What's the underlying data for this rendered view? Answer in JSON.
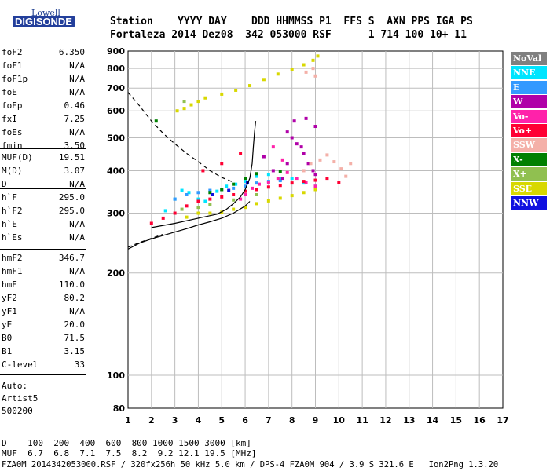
{
  "logo": {
    "line1": "Lowell",
    "line2": "DIGISONDE"
  },
  "header": {
    "labels": "Station    YYYY DAY    DDD HHMMSS P1  FFS S  AXN PPS IGA PS",
    "values": "Fortaleza 2014 Dez08  342 053000 RSF      1 714 100 10+ 11"
  },
  "params_group1": [
    {
      "label": "foF2",
      "value": "6.350"
    },
    {
      "label": "foF1",
      "value": "N/A"
    },
    {
      "label": "foF1p",
      "value": "N/A"
    },
    {
      "label": "foE",
      "value": "N/A"
    },
    {
      "label": "foEp",
      "value": "0.46"
    },
    {
      "label": "fxI",
      "value": "7.25"
    },
    {
      "label": "foEs",
      "value": "N/A"
    },
    {
      "label": "fmin",
      "value": "3.50"
    }
  ],
  "params_group2": [
    {
      "label": "MUF(D)",
      "value": "19.51"
    },
    {
      "label": "M(D)",
      "value": "3.07"
    },
    {
      "label": "D",
      "value": "N/A"
    }
  ],
  "params_group3": [
    {
      "label": "h`F",
      "value": "295.0"
    },
    {
      "label": "h`F2",
      "value": "295.0"
    },
    {
      "label": "h`E",
      "value": "N/A"
    },
    {
      "label": "h`Es",
      "value": "N/A"
    }
  ],
  "params_group4": [
    {
      "label": "hmF2",
      "value": "346.7"
    },
    {
      "label": "hmF1",
      "value": "N/A"
    },
    {
      "label": "hmE",
      "value": "110.0"
    },
    {
      "label": "yF2",
      "value": "80.2"
    },
    {
      "label": "yF1",
      "value": "N/A"
    },
    {
      "label": "yE",
      "value": "20.0"
    },
    {
      "label": "B0",
      "value": "71.5"
    },
    {
      "label": "B1",
      "value": "3.15"
    }
  ],
  "params_group5": [
    {
      "label": "C-level",
      "value": "33"
    }
  ],
  "auto": {
    "line1": "Auto:",
    "line2": "Artist5",
    "line3": "500200"
  },
  "legend": [
    {
      "label": "NoVal",
      "color": "#808080"
    },
    {
      "label": "NNE",
      "color": "#00e5ff"
    },
    {
      "label": "E",
      "color": "#3399ff"
    },
    {
      "label": "W",
      "color": "#b000a8"
    },
    {
      "label": "Vo-",
      "color": "#ff22aa"
    },
    {
      "label": "Vo+",
      "color": "#ff0033"
    },
    {
      "label": "SSW",
      "color": "#f4b0a8"
    },
    {
      "label": "X-",
      "color": "#008000"
    },
    {
      "label": "X+",
      "color": "#90c050"
    },
    {
      "label": "SSE",
      "color": "#d8d800"
    },
    {
      "label": "NNW",
      "color": "#1010e0"
    }
  ],
  "muf_table": {
    "d_row": "D    100  200  400  600  800 1000 1500 3000 [km]",
    "muf_row": "MUF  6.7  6.8  7.1  7.5  8.2  9.2 12.1 19.5 [MHz]"
  },
  "footer": "FZA0M_2014342053000.RSF / 320fx256h 50 kHz 5.0 km / DPS-4 FZA0M 904 / 3.9 S 321.6 E   Ion2Png 1.3.20",
  "chart_data": {
    "type": "scatter",
    "title": "",
    "xlabel": "",
    "ylabel": "",
    "xlim": [
      1,
      17
    ],
    "ylim": [
      80,
      900
    ],
    "y_scale": "log",
    "x_ticks": [
      1,
      2,
      3,
      4,
      5,
      6,
      7,
      8,
      9,
      10,
      11,
      12,
      13,
      14,
      15,
      16,
      17
    ],
    "y_ticks": [
      80,
      100,
      200,
      300,
      400,
      500,
      600,
      700,
      800,
      900
    ],
    "grid": true,
    "legend_position": "right",
    "series": [
      {
        "name": "SSE",
        "points": [
          [
            3.1,
            600
          ],
          [
            3.4,
            610
          ],
          [
            3.7,
            625
          ],
          [
            4.0,
            640
          ],
          [
            4.3,
            655
          ],
          [
            5.0,
            672
          ],
          [
            5.6,
            690
          ],
          [
            6.2,
            712
          ],
          [
            6.8,
            742
          ],
          [
            7.4,
            770
          ],
          [
            8.0,
            795
          ],
          [
            8.5,
            820
          ],
          [
            8.9,
            845
          ],
          [
            9.1,
            870
          ],
          [
            3.5,
            292
          ],
          [
            4.0,
            300
          ],
          [
            4.5,
            300
          ],
          [
            5.0,
            302
          ],
          [
            5.5,
            308
          ],
          [
            6.0,
            312
          ],
          [
            6.5,
            320
          ],
          [
            7.0,
            326
          ],
          [
            7.5,
            332
          ],
          [
            8.0,
            338
          ],
          [
            8.5,
            345
          ],
          [
            9.0,
            352
          ]
        ]
      },
      {
        "name": "NNE",
        "points": [
          [
            2.6,
            305
          ],
          [
            3.0,
            330
          ],
          [
            3.3,
            350
          ],
          [
            3.6,
            345
          ],
          [
            4.0,
            330
          ],
          [
            4.3,
            325
          ],
          [
            4.8,
            348
          ],
          [
            5.2,
            360
          ],
          [
            5.6,
            365
          ],
          [
            6.0,
            372
          ],
          [
            6.5,
            385
          ],
          [
            7.0,
            390
          ],
          [
            7.5,
            378
          ],
          [
            8.0,
            380
          ],
          [
            8.5,
            368
          ],
          [
            9.0,
            360
          ]
        ]
      },
      {
        "name": "E",
        "points": [
          [
            3.0,
            330
          ],
          [
            3.5,
            340
          ],
          [
            4.0,
            345
          ],
          [
            4.5,
            350
          ],
          [
            5.0,
            352
          ],
          [
            5.5,
            355
          ],
          [
            6.0,
            360
          ],
          [
            6.5,
            368
          ],
          [
            7.0,
            372
          ],
          [
            7.5,
            374
          ]
        ]
      },
      {
        "name": "W",
        "points": [
          [
            7.8,
            520
          ],
          [
            8.0,
            500
          ],
          [
            8.2,
            480
          ],
          [
            8.4,
            470
          ],
          [
            8.5,
            450
          ],
          [
            8.7,
            420
          ],
          [
            8.9,
            400
          ],
          [
            9.0,
            390
          ],
          [
            7.8,
            420
          ],
          [
            8.1,
            560
          ],
          [
            8.6,
            570
          ],
          [
            9.0,
            540
          ],
          [
            6.8,
            440
          ],
          [
            7.2,
            400
          ],
          [
            7.6,
            380
          ]
        ]
      },
      {
        "name": "Vo-",
        "points": [
          [
            5.8,
            330
          ],
          [
            6.0,
            340
          ],
          [
            6.3,
            355
          ],
          [
            6.6,
            365
          ],
          [
            7.0,
            370
          ],
          [
            7.4,
            380
          ],
          [
            7.8,
            395
          ],
          [
            8.2,
            380
          ],
          [
            8.6,
            370
          ],
          [
            9.0,
            360
          ],
          [
            7.2,
            470
          ],
          [
            7.6,
            430
          ]
        ]
      },
      {
        "name": "Vo+",
        "points": [
          [
            2.0,
            280
          ],
          [
            2.5,
            290
          ],
          [
            3.0,
            300
          ],
          [
            3.5,
            315
          ],
          [
            4.0,
            325
          ],
          [
            4.5,
            330
          ],
          [
            5.0,
            335
          ],
          [
            5.5,
            340
          ],
          [
            6.0,
            348
          ],
          [
            6.5,
            352
          ],
          [
            7.0,
            358
          ],
          [
            7.5,
            362
          ],
          [
            8.0,
            368
          ],
          [
            8.5,
            372
          ],
          [
            9.0,
            375
          ],
          [
            9.5,
            380
          ],
          [
            10.0,
            370
          ],
          [
            4.2,
            400
          ],
          [
            5.0,
            420
          ],
          [
            5.8,
            450
          ]
        ]
      },
      {
        "name": "SSW",
        "points": [
          [
            8.5,
            400
          ],
          [
            8.8,
            420
          ],
          [
            9.2,
            430
          ],
          [
            9.5,
            445
          ],
          [
            9.8,
            425
          ],
          [
            10.1,
            405
          ],
          [
            10.3,
            385
          ],
          [
            8.6,
            780
          ],
          [
            8.9,
            800
          ],
          [
            9.0,
            760
          ],
          [
            10.5,
            420
          ]
        ]
      },
      {
        "name": "X-",
        "points": [
          [
            4.5,
            345
          ],
          [
            5.0,
            352
          ],
          [
            5.5,
            365
          ],
          [
            6.0,
            380
          ],
          [
            6.5,
            392
          ],
          [
            7.5,
            398
          ],
          [
            2.2,
            560
          ]
        ]
      },
      {
        "name": "X+",
        "points": [
          [
            3.3,
            308
          ],
          [
            4.0,
            312
          ],
          [
            4.5,
            318
          ],
          [
            5.5,
            328
          ],
          [
            6.5,
            340
          ],
          [
            3.4,
            640
          ]
        ]
      },
      {
        "name": "NNW",
        "points": [
          [
            4.6,
            340
          ],
          [
            5.3,
            350
          ],
          [
            6.1,
            370
          ]
        ]
      }
    ],
    "curves": [
      {
        "name": "virtual-height-model",
        "points": [
          [
            2.0,
            272
          ],
          [
            3.0,
            280
          ],
          [
            4.0,
            290
          ],
          [
            4.8,
            298
          ],
          [
            5.2,
            308
          ],
          [
            5.5,
            320
          ],
          [
            5.8,
            335
          ],
          [
            6.0,
            352
          ],
          [
            6.2,
            380
          ],
          [
            6.3,
            420
          ],
          [
            6.35,
            470
          ],
          [
            6.4,
            520
          ],
          [
            6.45,
            560
          ]
        ]
      },
      {
        "name": "profile-lower",
        "points": [
          [
            1.0,
            235
          ],
          [
            1.5,
            245
          ],
          [
            2.0,
            252
          ],
          [
            2.5,
            258
          ],
          [
            3.0,
            264
          ],
          [
            3.5,
            270
          ],
          [
            4.0,
            277
          ],
          [
            4.5,
            283
          ],
          [
            5.0,
            290
          ],
          [
            5.5,
            300
          ],
          [
            6.0,
            315
          ],
          [
            6.2,
            325
          ]
        ]
      },
      {
        "name": "profile-dashed",
        "dashed": true,
        "points": [
          [
            1.0,
            680
          ],
          [
            1.5,
            620
          ],
          [
            2.0,
            560
          ],
          [
            2.5,
            515
          ],
          [
            3.0,
            480
          ],
          [
            3.5,
            450
          ],
          [
            4.0,
            425
          ],
          [
            4.5,
            400
          ],
          [
            5.0,
            382
          ],
          [
            5.5,
            370
          ]
        ]
      },
      {
        "name": "lower-dashed",
        "dashed": true,
        "points": [
          [
            1.0,
            238
          ],
          [
            1.5,
            246
          ],
          [
            2.0,
            253
          ],
          [
            2.5,
            260
          ]
        ]
      }
    ]
  }
}
